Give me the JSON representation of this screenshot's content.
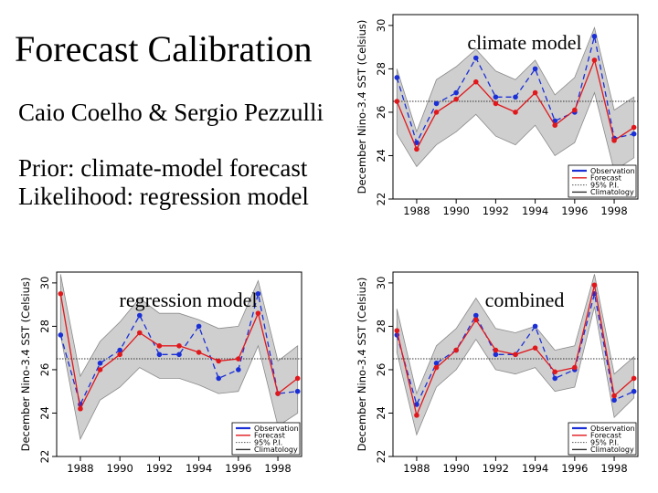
{
  "slide": {
    "title": "Forecast Calibration",
    "authors": "Caio Coelho & Sergio Pezzulli",
    "prior_line": "Prior: climate-model forecast",
    "likelihood_line": "Likelihood: regression model"
  },
  "colors": {
    "observation": "#1a2fd6",
    "forecast": "#e0181c",
    "interval_fill": "#cfcfcf",
    "climatology": "#333333"
  },
  "chart_data": [
    {
      "type": "line",
      "title": "climate model",
      "ylabel": "December Nino-3.4 SST (Celsius)",
      "xlabel": "",
      "x": [
        1987,
        1988,
        1989,
        1990,
        1991,
        1992,
        1993,
        1994,
        1995,
        1996,
        1997,
        1998,
        1999
      ],
      "xticks": [
        "1988",
        "1990",
        "1992",
        "1994",
        "1996",
        "1998"
      ],
      "yticks": [
        "22",
        "24",
        "26",
        "28",
        "30"
      ],
      "ylim": [
        22,
        30.5
      ],
      "xlim": [
        1986.8,
        1999.2
      ],
      "climatology": 26.5,
      "series": [
        {
          "name": "Observation",
          "values": [
            27.6,
            24.6,
            26.4,
            26.9,
            28.5,
            26.7,
            26.7,
            28.0,
            25.6,
            26.0,
            29.5,
            24.8,
            25.0
          ]
        },
        {
          "name": "Forecast",
          "values": [
            26.5,
            24.3,
            26.0,
            26.6,
            27.4,
            26.4,
            26.0,
            26.9,
            25.4,
            26.1,
            28.4,
            24.7,
            25.3
          ]
        }
      ],
      "interval": {
        "name": "95% P.I.",
        "lower": [
          25.0,
          23.5,
          24.5,
          25.1,
          25.9,
          24.9,
          24.5,
          25.4,
          24.0,
          24.6,
          26.9,
          23.3,
          23.9
        ],
        "upper": [
          28.0,
          25.1,
          27.5,
          28.1,
          28.9,
          27.9,
          27.5,
          28.4,
          26.8,
          27.6,
          29.9,
          26.1,
          26.7
        ]
      },
      "legend": {
        "position": "bottom-right",
        "entries": [
          "Observation",
          "Forecast",
          "95% P.I.",
          "Climatology"
        ]
      }
    },
    {
      "type": "line",
      "title": "regression model",
      "ylabel": "December Nino-3.4 SST (Celsius)",
      "xlabel": "",
      "x": [
        1987,
        1988,
        1989,
        1990,
        1991,
        1992,
        1993,
        1994,
        1995,
        1996,
        1997,
        1998,
        1999
      ],
      "xticks": [
        "1988",
        "1990",
        "1992",
        "1994",
        "1996",
        "1998"
      ],
      "yticks": [
        "22",
        "24",
        "26",
        "28",
        "30"
      ],
      "ylim": [
        22,
        30.5
      ],
      "xlim": [
        1986.8,
        1999.2
      ],
      "climatology": 26.5,
      "series": [
        {
          "name": "Observation",
          "values": [
            27.6,
            24.4,
            26.3,
            26.9,
            28.5,
            26.7,
            26.7,
            28.0,
            25.6,
            26.0,
            29.5,
            24.9,
            25.0
          ]
        },
        {
          "name": "Forecast",
          "values": [
            29.5,
            24.2,
            26.0,
            26.7,
            27.7,
            27.1,
            27.1,
            26.8,
            26.4,
            26.5,
            28.6,
            24.9,
            25.6
          ]
        }
      ],
      "interval": {
        "name": "95% P.I.",
        "lower": [
          27.6,
          22.8,
          24.6,
          25.2,
          26.1,
          25.6,
          25.6,
          25.3,
          24.9,
          25.0,
          27.1,
          23.4,
          24.0
        ],
        "upper": [
          30.4,
          25.7,
          27.3,
          28.2,
          29.3,
          28.6,
          28.6,
          28.3,
          27.9,
          28.0,
          30.1,
          26.4,
          27.1
        ]
      },
      "legend": {
        "position": "bottom-right",
        "entries": [
          "Observation",
          "Forecast",
          "95% P.I.",
          "Climatology"
        ]
      }
    },
    {
      "type": "line",
      "title": "combined",
      "ylabel": "December Nino-3.4 SST (Celsius)",
      "xlabel": "",
      "x": [
        1987,
        1988,
        1989,
        1990,
        1991,
        1992,
        1993,
        1994,
        1995,
        1996,
        1997,
        1998,
        1999
      ],
      "xticks": [
        "1988",
        "1990",
        "1992",
        "1994",
        "1996",
        "1998"
      ],
      "yticks": [
        "22",
        "24",
        "26",
        "28",
        "30"
      ],
      "ylim": [
        22,
        30.5
      ],
      "xlim": [
        1986.8,
        1999.2
      ],
      "climatology": 26.5,
      "series": [
        {
          "name": "Observation",
          "values": [
            27.6,
            24.4,
            26.3,
            26.9,
            28.5,
            26.7,
            26.7,
            28.0,
            25.6,
            26.0,
            29.5,
            24.6,
            25.0
          ]
        },
        {
          "name": "Forecast",
          "values": [
            27.8,
            23.9,
            26.1,
            26.9,
            28.3,
            26.9,
            26.7,
            27.0,
            25.9,
            26.1,
            29.9,
            24.8,
            25.6
          ]
        }
      ],
      "interval": {
        "name": "95% P.I.",
        "lower": [
          26.8,
          23.0,
          25.2,
          26.0,
          27.4,
          26.0,
          25.8,
          26.1,
          25.0,
          25.2,
          28.9,
          23.8,
          24.7
        ],
        "upper": [
          28.8,
          24.9,
          27.1,
          27.9,
          29.3,
          27.9,
          27.7,
          28.0,
          26.9,
          27.1,
          30.4,
          25.8,
          26.6
        ]
      },
      "legend": {
        "position": "bottom-right",
        "entries": [
          "Observation",
          "Forecast",
          "95% P.I.",
          "Climatology"
        ]
      }
    }
  ]
}
